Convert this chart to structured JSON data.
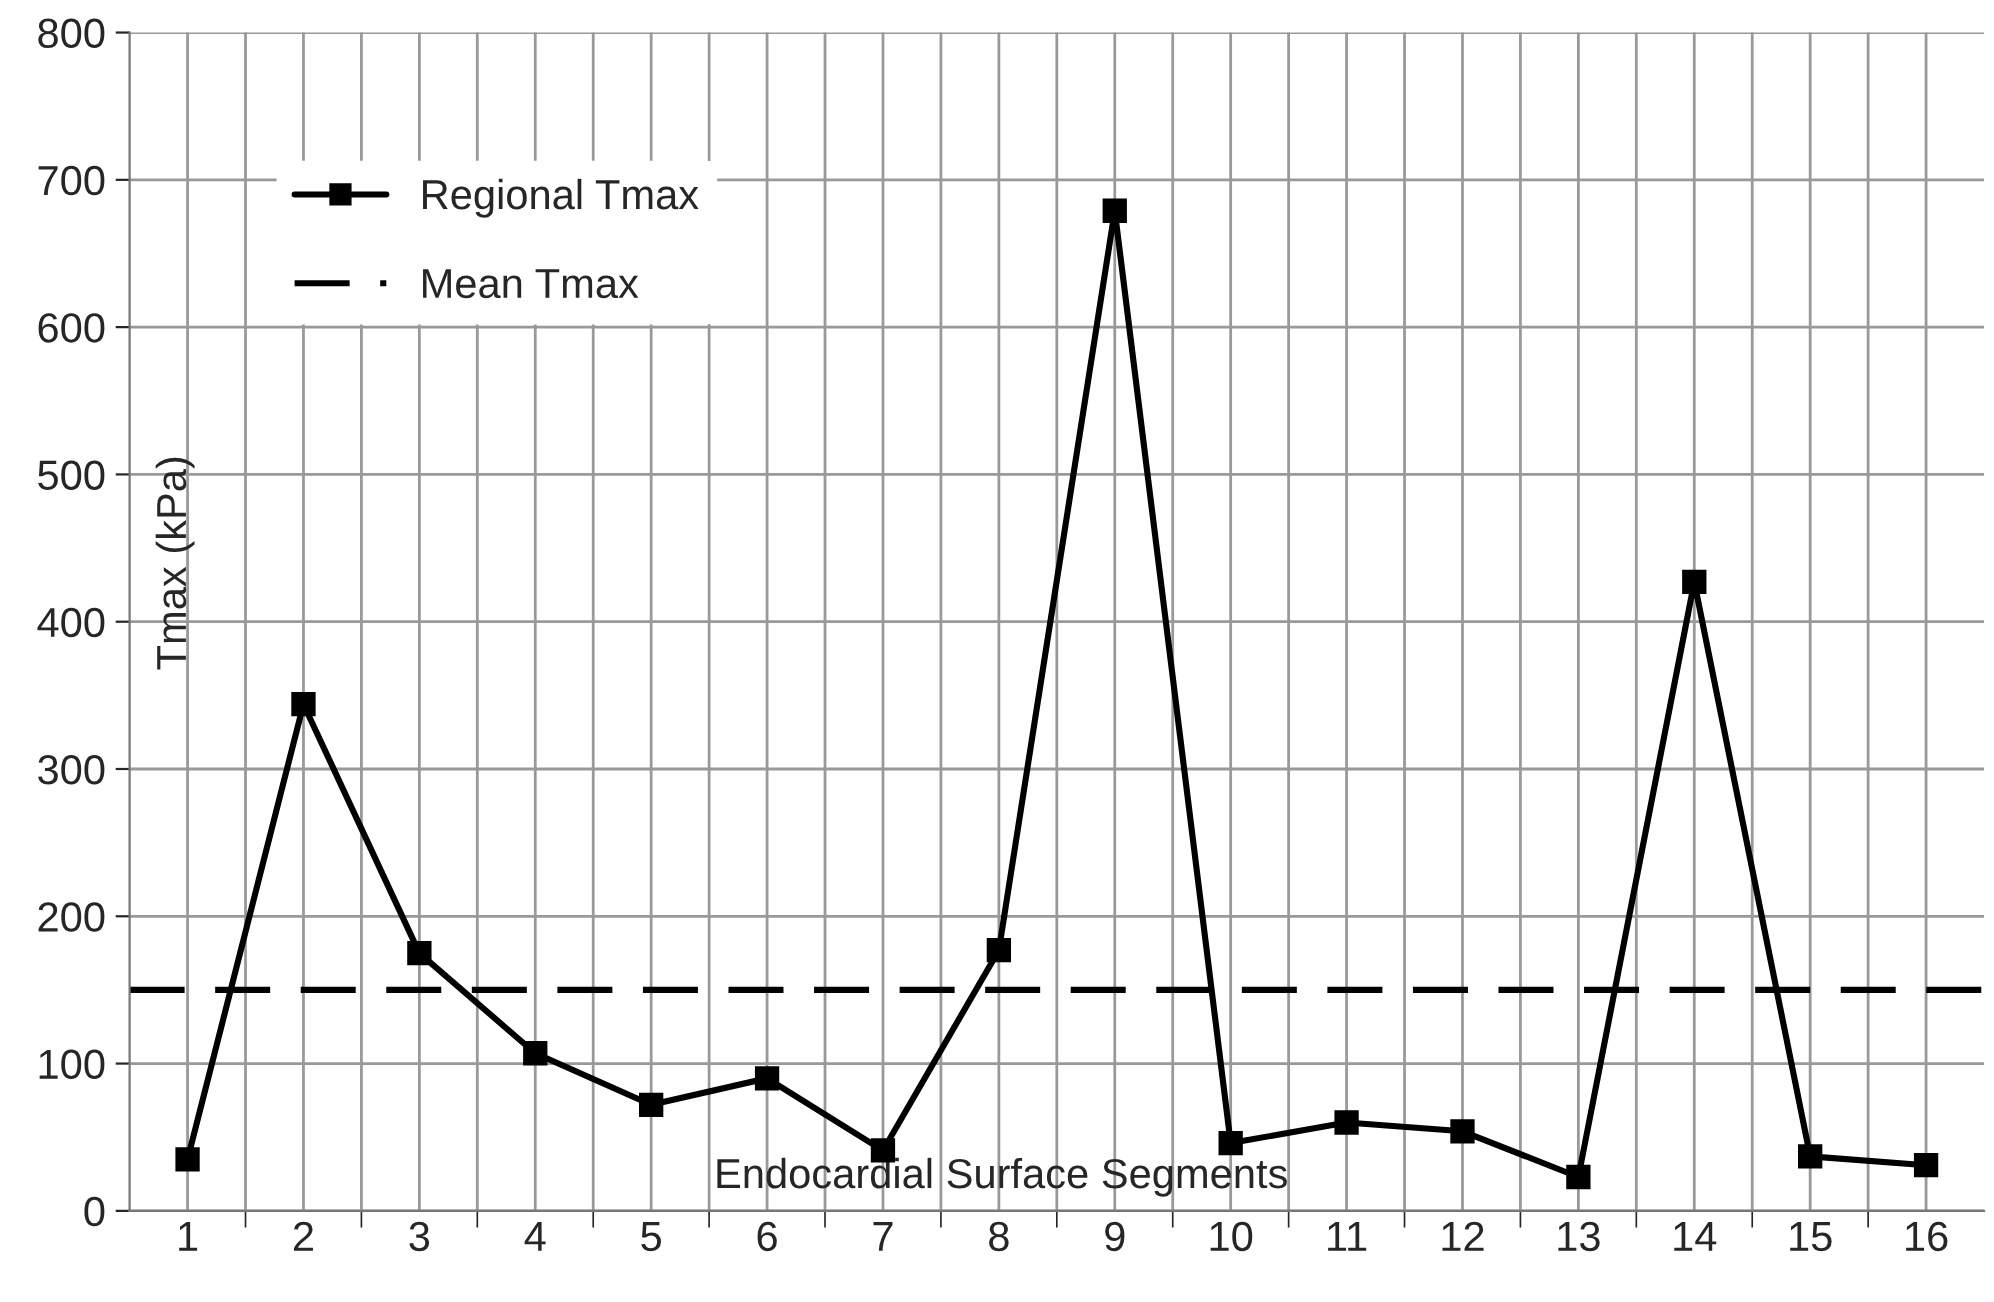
{
  "chart_data": {
    "type": "line",
    "xlabel": "Endocardial Surface Segments",
    "ylabel": "Tmax (kPa)",
    "categories": [
      "1",
      "2",
      "3",
      "4",
      "5",
      "6",
      "7",
      "8",
      "9",
      "10",
      "11",
      "12",
      "13",
      "14",
      "15",
      "16"
    ],
    "series": [
      {
        "name": "Regional Tmax",
        "color": "#000000",
        "values": [
          35,
          344,
          175,
          107,
          72,
          90,
          41,
          177,
          679,
          46,
          60,
          54,
          23,
          427,
          37,
          31
        ]
      }
    ],
    "ref_lines": [
      {
        "axis": "y",
        "value": 150,
        "label": "Mean Tmax",
        "color": "#000000",
        "line_style": "dashed"
      }
    ],
    "ylim": [
      0,
      800
    ],
    "yticks": [
      0,
      100,
      200,
      300,
      400,
      500,
      600,
      700,
      800
    ],
    "grid": true,
    "legend": "top left",
    "marker": "square",
    "line_style": "solid"
  }
}
